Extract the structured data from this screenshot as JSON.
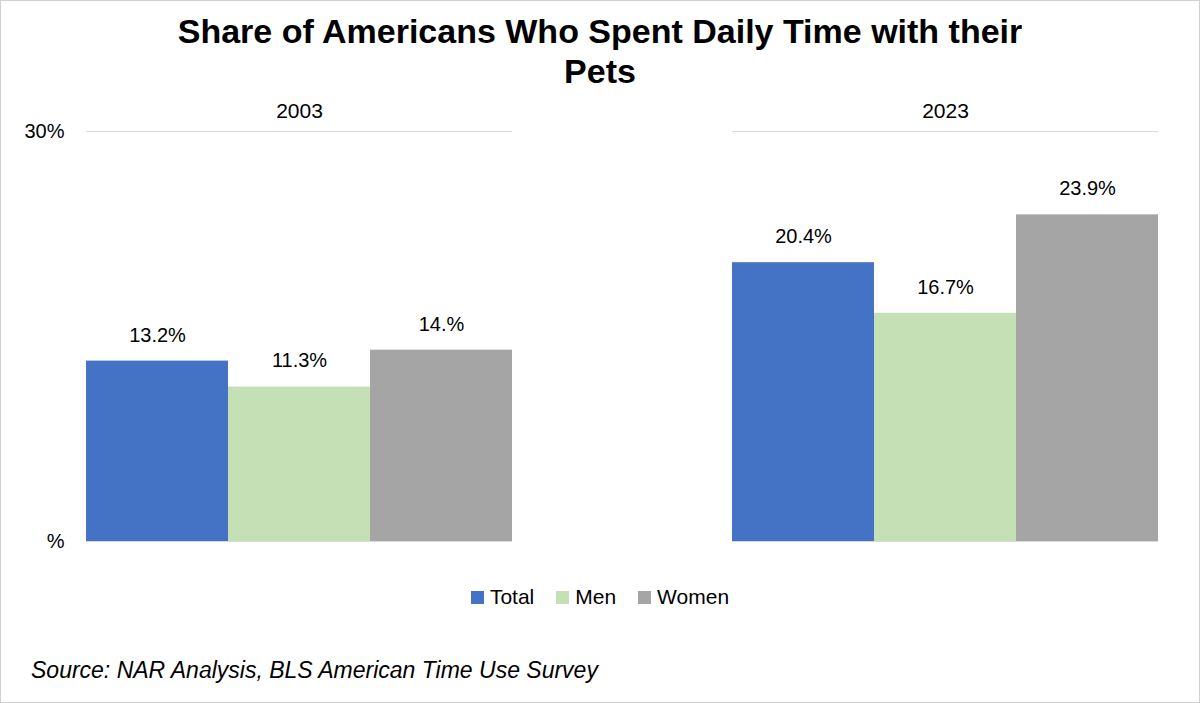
{
  "chart_data": {
    "type": "bar",
    "title": "Share of Americans Who Spent Daily Time with their Pets",
    "source": "Source: NAR Analysis, BLS American Time Use Survey",
    "categories": [
      "2003",
      "2023"
    ],
    "series": [
      {
        "name": "Total",
        "color": "#4472c4",
        "values": [
          13.2,
          20.4
        ],
        "value_labels": [
          "13.2%",
          "20.4%"
        ]
      },
      {
        "name": "Men",
        "color": "#c5e0b4",
        "values": [
          11.3,
          16.7
        ],
        "value_labels": [
          "11.3%",
          "16.7%"
        ]
      },
      {
        "name": "Women",
        "color": "#a5a5a5",
        "values": [
          14,
          23.9
        ],
        "value_labels": [
          "14.%",
          "23.9%"
        ]
      }
    ],
    "ylim": [
      0,
      30
    ],
    "yticks": [
      {
        "value": 0,
        "label": "%"
      },
      {
        "value": 30,
        "label": "30%"
      }
    ],
    "grid": true,
    "legend": "bottom",
    "data_labels": true
  }
}
